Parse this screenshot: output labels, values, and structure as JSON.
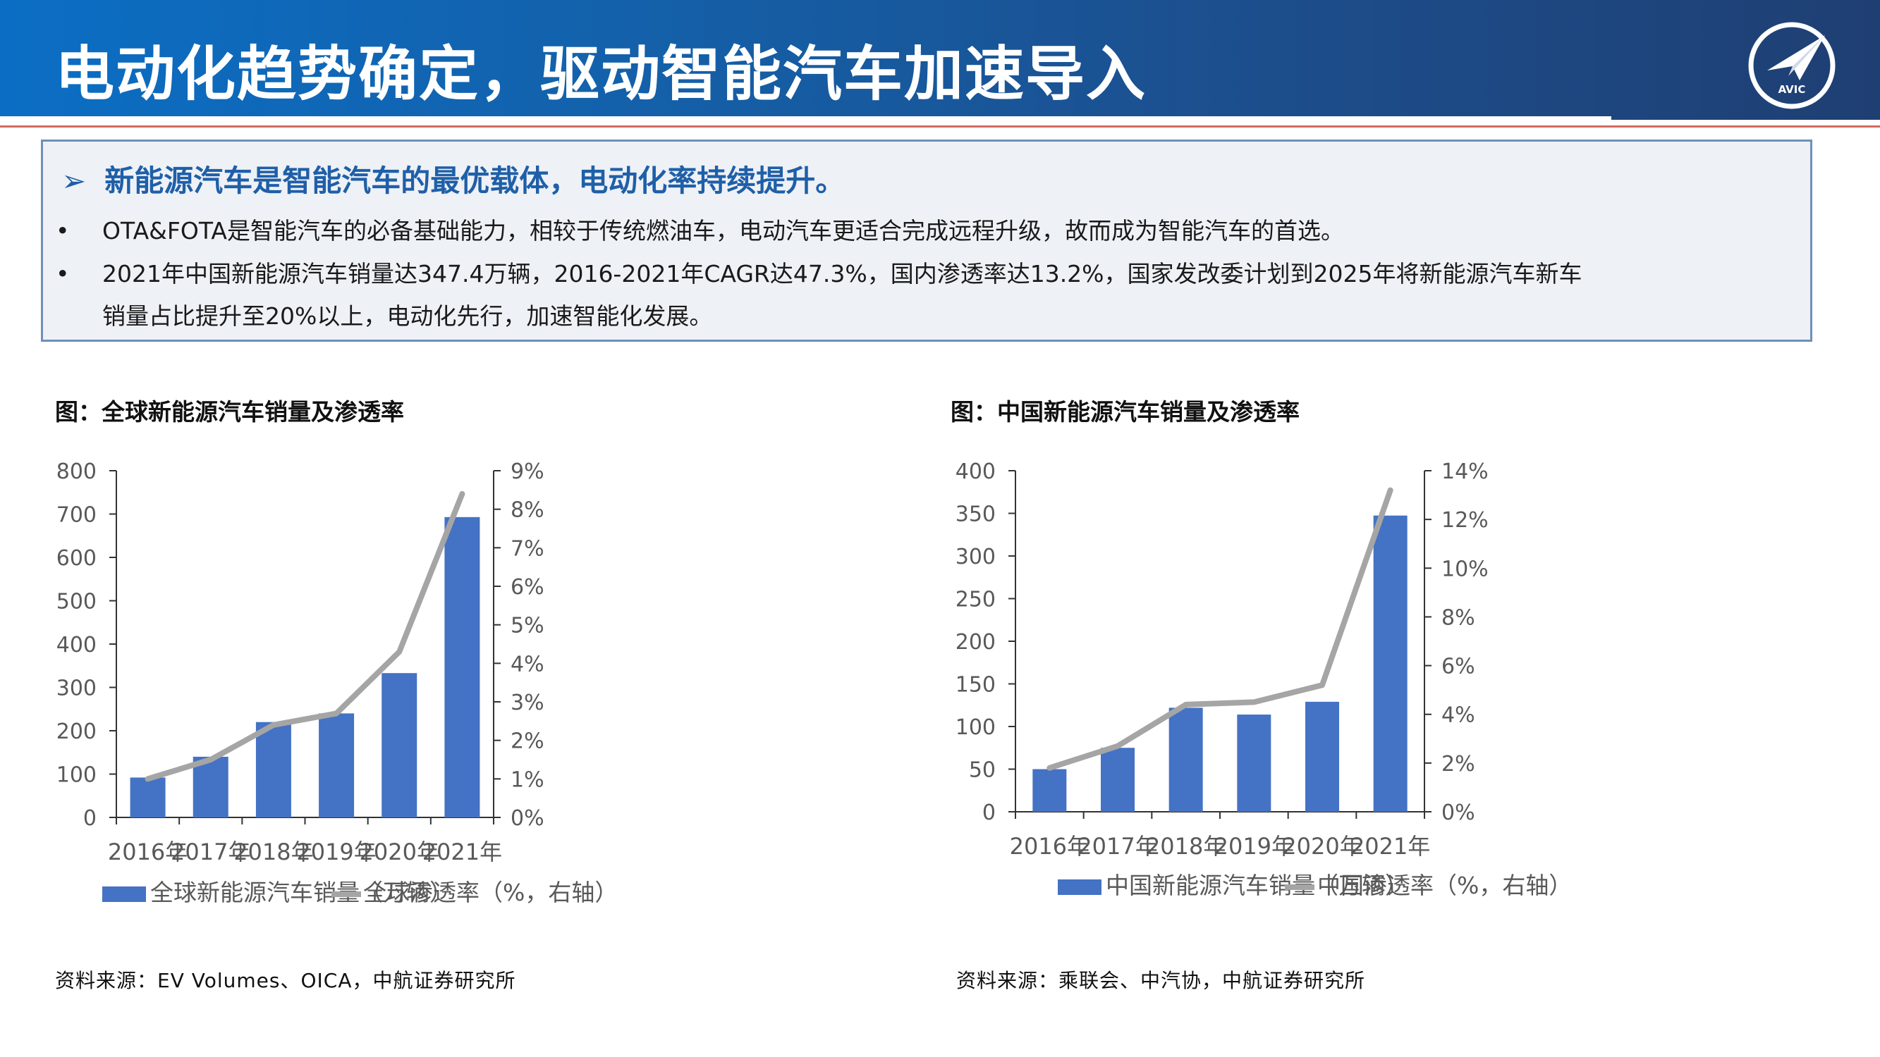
{
  "header": {
    "title": "电动化趋势确定，驱动智能汽车加速导入",
    "logo_text": "AVIC"
  },
  "summary": {
    "heading": "新能源汽车是智能汽车的最优载体，电动化率持续提升。",
    "arrow_icon": "➢",
    "bullet_symbol": "•",
    "bullets": [
      {
        "line1": "OTA&FOTA是智能汽车的必备基础能力，相较于传统燃油车，电动汽车更适合完成远程升级，故而成为智能汽车的首选。",
        "line2": ""
      },
      {
        "line1": "2021年中国新能源汽车销量达347.4万辆，2016-2021年CAGR达47.3%，国内渗透率达13.2%，国家发改委计划到2025年将新能源汽车新车",
        "line2": "销量占比提升至20%以上，电动化先行，加速智能化发展。"
      }
    ]
  },
  "colors": {
    "bar": "#4472c4",
    "line": "#a5a5a5",
    "header_start": "#0b6ec4",
    "header_end": "#1f3f73",
    "accent_text": "#1f5fa8"
  },
  "chart_data": [
    {
      "type": "bar",
      "title": "图：全球新能源汽车销量及渗透率",
      "categories": [
        "2016年",
        "2017年",
        "2018年",
        "2019年",
        "2020年",
        "2021年"
      ],
      "series": [
        {
          "name": "全球新能源汽车销量（万辆）",
          "type": "bar",
          "axis": "left",
          "values": [
            92,
            140,
            220,
            240,
            333,
            693
          ]
        },
        {
          "name": "全球渗透率（%，右轴）",
          "type": "line",
          "axis": "right",
          "values": [
            1.0,
            1.5,
            2.4,
            2.7,
            4.3,
            8.4
          ]
        }
      ],
      "ylim_left": [
        0,
        800
      ],
      "yticks_left": [
        "0",
        "100",
        "200",
        "300",
        "400",
        "500",
        "600",
        "700",
        "800"
      ],
      "ylim_right": [
        0,
        9
      ],
      "yticks_right": [
        "0%",
        "1%",
        "2%",
        "3%",
        "4%",
        "5%",
        "6%",
        "7%",
        "8%",
        "9%"
      ],
      "legend": "bottom",
      "grid": false,
      "source": "资料来源：EV Volumes、OICA，中航证券研究所"
    },
    {
      "type": "bar",
      "title": "图：中国新能源汽车销量及渗透率",
      "categories": [
        "2016年",
        "2017年",
        "2018年",
        "2019年",
        "2020年",
        "2021年"
      ],
      "series": [
        {
          "name": "中国新能源汽车销量（万辆）",
          "type": "bar",
          "axis": "left",
          "values": [
            50,
            75,
            122,
            114,
            129,
            347.4
          ]
        },
        {
          "name": "中国渗透率（%，右轴）",
          "type": "line",
          "axis": "right",
          "values": [
            1.8,
            2.7,
            4.4,
            4.5,
            5.2,
            13.2
          ]
        }
      ],
      "ylim_left": [
        0,
        400
      ],
      "yticks_left": [
        "0",
        "50",
        "100",
        "150",
        "200",
        "250",
        "300",
        "350",
        "400"
      ],
      "ylim_right": [
        0,
        14
      ],
      "yticks_right": [
        "0%",
        "2%",
        "4%",
        "6%",
        "8%",
        "10%",
        "12%",
        "14%"
      ],
      "legend": "bottom",
      "grid": false,
      "source": "资料来源：乘联会、中汽协，中航证券研究所"
    }
  ]
}
